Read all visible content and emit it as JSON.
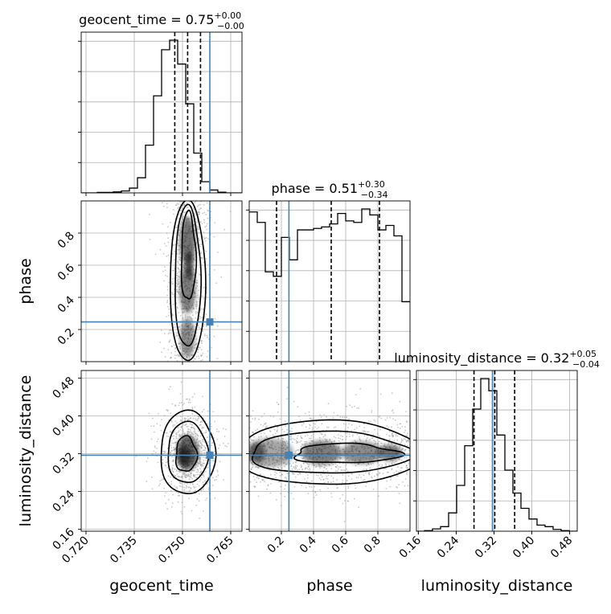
{
  "colors": {
    "truth": "#4682b4",
    "hist": "#000000",
    "grid": "#b0b0b0",
    "scatter": "#9a9a9a"
  },
  "chart_data": {
    "type": "corner",
    "parameters": [
      {
        "name": "geocent_time",
        "xlabel": "geocent_time",
        "range": [
          0.7185,
          0.7685
        ],
        "ticks": [
          0.72,
          0.735,
          0.75,
          0.765
        ],
        "tick_labels": [
          "0.720",
          "0.735",
          "0.750",
          "0.765"
        ],
        "truth": 0.7585,
        "quantiles": [
          0.7476,
          0.7516,
          0.7556
        ],
        "title": {
          "main": "geocent_time = 0.75",
          "sup": "+0.00",
          "sub": "−0.00"
        },
        "hist": {
          "edges_start": 0.7185,
          "bin_width": 0.0025,
          "counts": [
            0,
            0,
            0.3,
            0.3,
            0.6,
            1.2,
            3,
            9.5,
            30,
            61,
            90,
            96,
            81,
            56,
            25,
            7,
            1.8,
            0.4,
            0,
            0
          ]
        }
      },
      {
        "name": "phase",
        "xlabel": "phase",
        "range": [
          0.0,
          1.0
        ],
        "ticks": [
          0.2,
          0.4,
          0.6,
          0.8
        ],
        "tick_labels": [
          "0.2",
          "0.4",
          "0.6",
          "0.8"
        ],
        "truth": 0.247,
        "quantiles": [
          0.17,
          0.51,
          0.81
        ],
        "title": {
          "main": "phase = 0.51",
          "sup": "+0.30",
          "sub": "−0.34"
        },
        "hist": {
          "edges_start": 0.0,
          "bin_width": 0.05,
          "counts": [
            1.0,
            0.93,
            0.6,
            0.57,
            0.83,
            0.68,
            0.88,
            0.88,
            0.89,
            0.9,
            0.92,
            0.99,
            0.94,
            0.93,
            1.02,
            0.98,
            0.88,
            0.91,
            0.84,
            0.4
          ]
        }
      },
      {
        "name": "luminosity_distance",
        "xlabel": "luminosity_distance",
        "range": [
          0.156,
          0.496
        ],
        "ticks": [
          0.16,
          0.24,
          0.32,
          0.4,
          0.48
        ],
        "tick_labels": [
          "0.16",
          "0.24",
          "0.32",
          "0.40",
          "0.48"
        ],
        "truth": 0.3167,
        "quantiles": [
          0.2777,
          0.3217,
          0.3637
        ],
        "title": {
          "main": "luminosity_distance = 0.32",
          "sup": "+0.05",
          "sub": "−0.04"
        },
        "hist": {
          "edges_start": 0.156,
          "bin_width": 0.017,
          "counts": [
            0,
            0.4,
            1.5,
            3,
            12,
            30,
            56,
            80,
            100,
            92,
            63,
            40,
            25,
            15,
            8,
            4,
            3,
            1.2,
            0.4,
            0
          ]
        }
      }
    ],
    "y_axes": {
      "phase": {
        "ticks": [
          0.2,
          0.4,
          0.6,
          0.8
        ],
        "tick_labels": [
          "0.2",
          "0.4",
          "0.6",
          "0.8"
        ],
        "ylabel": "phase"
      },
      "luminosity_distance": {
        "ticks": [
          0.16,
          0.24,
          0.32,
          0.4,
          0.48
        ],
        "tick_labels": [
          "0.16",
          "0.24",
          "0.32",
          "0.40",
          "0.48"
        ],
        "ylabel": "luminosity_distance"
      }
    },
    "grid": true
  }
}
